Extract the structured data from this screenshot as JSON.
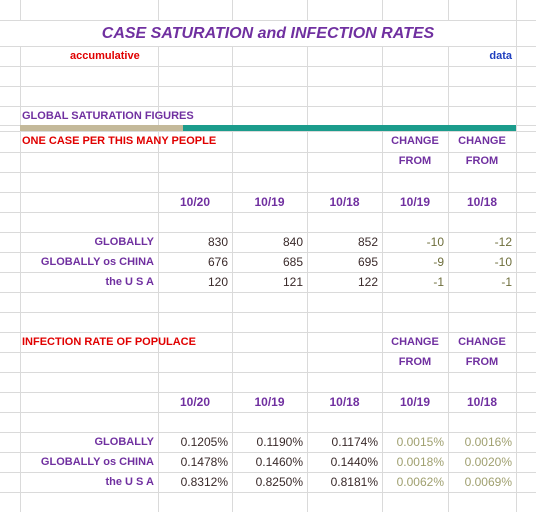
{
  "title": "CASE SATURATION and INFECTION RATES",
  "subtitle_left": "accumulative",
  "subtitle_right": "data",
  "sections": [
    {
      "heading": "GLOBAL SATURATION FIGURES",
      "subheading": "ONE CASE PER THIS MANY PEOPLE",
      "change_headers": [
        [
          "CHANGE",
          "FROM"
        ],
        [
          "CHANGE",
          "FROM"
        ]
      ],
      "columns": [
        "10/20",
        "10/19",
        "10/18",
        "10/19",
        "10/18"
      ],
      "rows": [
        {
          "label": "GLOBALLY",
          "values": [
            830,
            840,
            852,
            -10,
            -12
          ]
        },
        {
          "label": "GLOBALLY os CHINA",
          "values": [
            676,
            685,
            695,
            -9,
            -10
          ]
        },
        {
          "label": "the U S A",
          "values": [
            120,
            121,
            122,
            -1,
            -1
          ]
        }
      ]
    },
    {
      "heading": "INFECTION RATE OF POPULACE",
      "change_headers": [
        [
          "CHANGE",
          "FROM"
        ],
        [
          "CHANGE",
          "FROM"
        ]
      ],
      "columns": [
        "10/20",
        "10/19",
        "10/18",
        "10/19",
        "10/18"
      ],
      "rows": [
        {
          "label": "GLOBALLY",
          "values": [
            "0.1205%",
            "0.1190%",
            "0.1174%",
            "0.0015%",
            "0.0016%"
          ]
        },
        {
          "label": "GLOBALLY os CHINA",
          "values": [
            "0.1478%",
            "0.1460%",
            "0.1440%",
            "0.0018%",
            "0.0020%"
          ]
        },
        {
          "label": "the U S A",
          "values": [
            "0.8312%",
            "0.8250%",
            "0.8181%",
            "0.0062%",
            "0.0069%"
          ]
        }
      ]
    }
  ]
}
